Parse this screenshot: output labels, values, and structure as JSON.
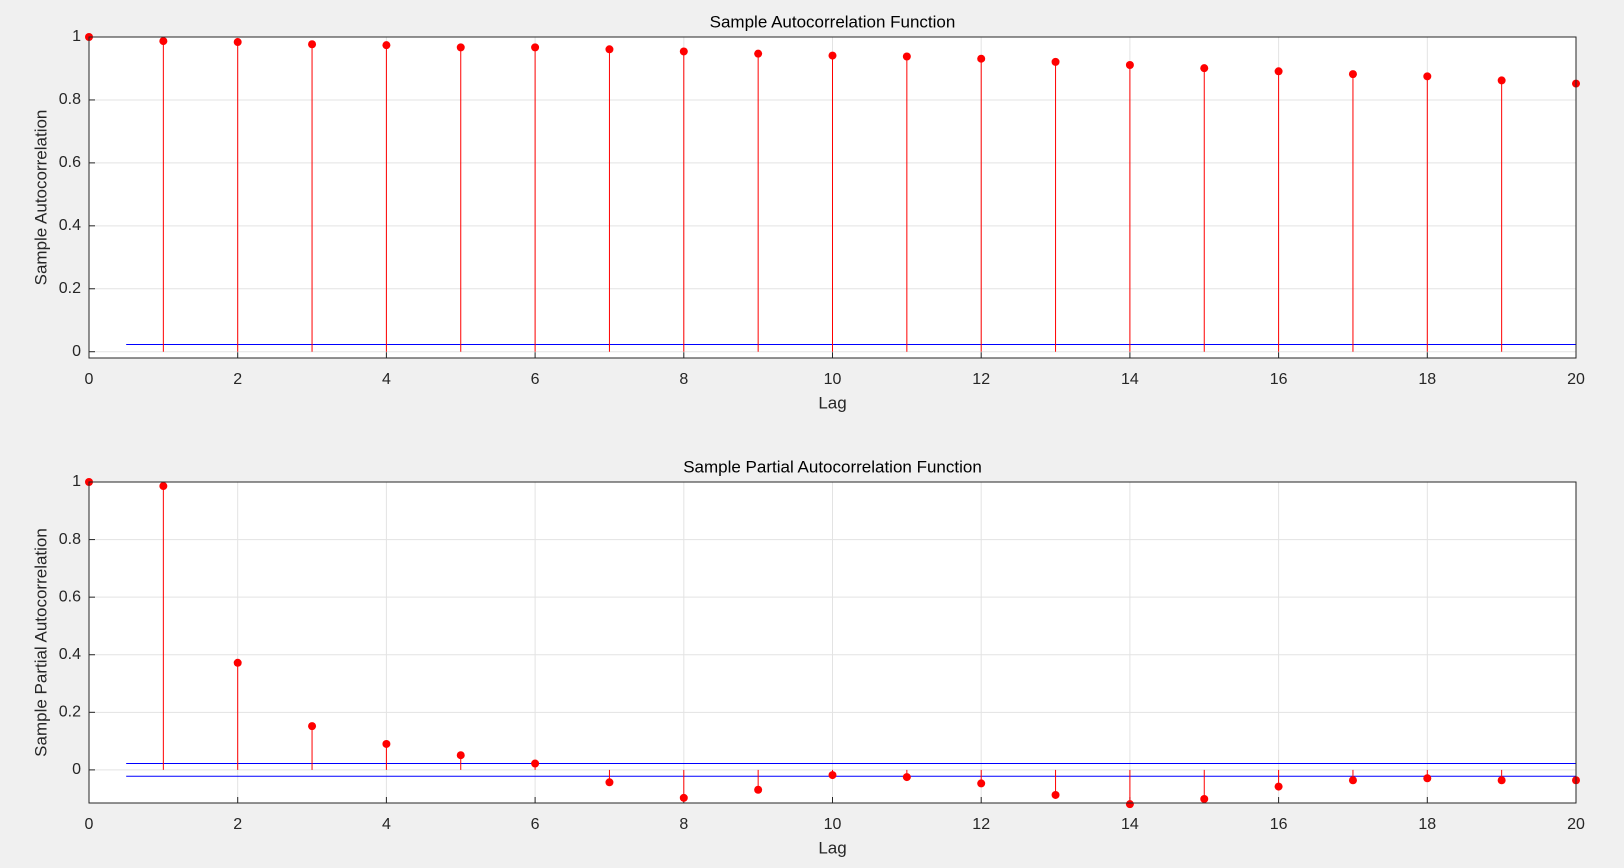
{
  "chart_data": [
    {
      "type": "stem",
      "title": "Sample Autocorrelation Function",
      "x_label": "Lag",
      "y_label": "Sample Autocorrelation",
      "x": [
        0,
        1,
        2,
        3,
        4,
        5,
        6,
        7,
        8,
        9,
        10,
        11,
        12,
        13,
        14,
        15,
        16,
        17,
        18,
        19,
        20
      ],
      "values": [
        1,
        0.987,
        0.984,
        0.977,
        0.974,
        0.967,
        0.967,
        0.961,
        0.954,
        0.947,
        0.941,
        0.938,
        0.931,
        0.921,
        0.911,
        0.901,
        0.891,
        0.882,
        0.875,
        0.862,
        0.852
      ],
      "color": "#ff0000",
      "bounds": [
        0.023,
        -0.02
      ],
      "bounds_color": "#0000ff",
      "xlim": [
        0,
        20
      ],
      "xticks": [
        0,
        2,
        4,
        6,
        8,
        10,
        12,
        14,
        16,
        18,
        20
      ],
      "ylim": [
        -0.02,
        1
      ],
      "yticks": [
        0,
        0.2,
        0.4,
        0.6,
        0.8,
        1
      ],
      "grid": true
    },
    {
      "type": "stem",
      "title": "Sample Partial Autocorrelation Function",
      "x_label": "Lag",
      "y_label": "Sample Partial Autocorrelation",
      "x": [
        0,
        1,
        2,
        3,
        4,
        5,
        6,
        7,
        8,
        9,
        10,
        11,
        12,
        13,
        14,
        15,
        16,
        17,
        18,
        19,
        20
      ],
      "values": [
        1,
        0.986,
        0.372,
        0.152,
        0.09,
        0.051,
        0.022,
        -0.043,
        -0.097,
        -0.069,
        -0.018,
        -0.025,
        -0.047,
        -0.087,
        -0.119,
        -0.101,
        -0.058,
        -0.036,
        -0.029,
        -0.036,
        -0.036
      ],
      "color": "#ff0000",
      "bounds": [
        0.022,
        -0.022
      ],
      "bounds_color": "#0000ff",
      "xlim": [
        0,
        20
      ],
      "xticks": [
        0,
        2,
        4,
        6,
        8,
        10,
        12,
        14,
        16,
        18,
        20
      ],
      "ylim": [
        -0.115,
        1
      ],
      "yticks": [
        0,
        0.2,
        0.4,
        0.6,
        0.8,
        1
      ],
      "grid": true
    }
  ]
}
